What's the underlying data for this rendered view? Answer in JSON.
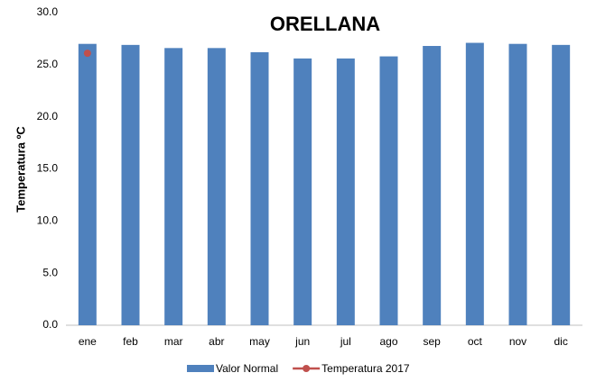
{
  "chart_data": {
    "type": "bar",
    "title": "ORELLANA",
    "y_label": "Temperatura ºC",
    "categories": [
      "ene",
      "feb",
      "mar",
      "abr",
      "may",
      "jun",
      "jul",
      "ago",
      "sep",
      "oct",
      "nov",
      "dic"
    ],
    "series": [
      {
        "name": "Valor Normal",
        "type": "bar",
        "color": "#4f81bd",
        "values": [
          27.0,
          26.9,
          26.6,
          26.6,
          26.2,
          25.6,
          25.6,
          25.8,
          26.8,
          27.1,
          27.0,
          26.9
        ]
      },
      {
        "name": "Temperatura 2017",
        "type": "line",
        "color": "#c0504d",
        "values": [
          26.1,
          null,
          null,
          null,
          null,
          null,
          null,
          null,
          null,
          null,
          null,
          null
        ]
      }
    ],
    "ylim": [
      0,
      30
    ],
    "yticks": [
      {
        "value": 0,
        "label": "0.0"
      },
      {
        "value": 5,
        "label": "5.0"
      },
      {
        "value": 10,
        "label": "10.0"
      },
      {
        "value": 15,
        "label": "15.0"
      },
      {
        "value": 20,
        "label": "20.0"
      },
      {
        "value": 25,
        "label": "25.0"
      },
      {
        "value": 30,
        "label": "30.0"
      }
    ],
    "legend": "bottom"
  }
}
